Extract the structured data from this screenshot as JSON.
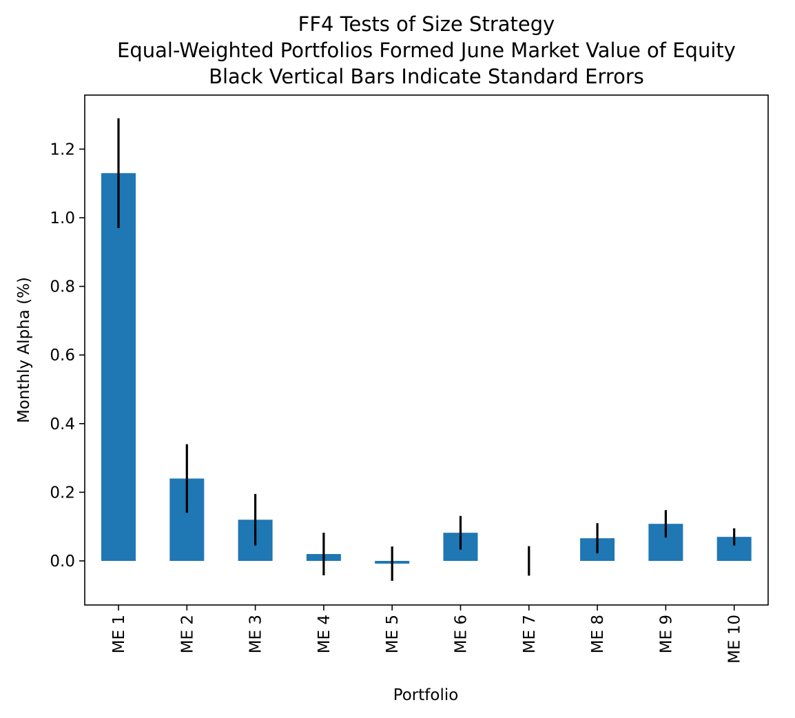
{
  "chart_data": {
    "type": "bar",
    "title_lines": [
      "FF4 Tests of Size Strategy",
      "Equal-Weighted Portfolios Formed June Market Value of Equity",
      "Black Vertical Bars Indicate Standard Errors"
    ],
    "xlabel": "Portfolio",
    "ylabel": "Monthly Alpha (%)",
    "categories": [
      "ME 1",
      "ME 2",
      "ME 3",
      "ME 4",
      "ME 5",
      "ME 6",
      "ME 7",
      "ME 8",
      "ME 9",
      "ME 10"
    ],
    "values": [
      1.13,
      0.24,
      0.12,
      0.02,
      -0.008,
      0.082,
      0.0,
      0.066,
      0.108,
      0.07
    ],
    "errors": [
      0.16,
      0.1,
      0.075,
      0.062,
      0.05,
      0.049,
      0.043,
      0.044,
      0.04,
      0.025
    ],
    "yticks": [
      0.0,
      0.2,
      0.4,
      0.6,
      0.8,
      1.0,
      1.2
    ],
    "ytick_labels": [
      "0.0",
      "0.2",
      "0.4",
      "0.6",
      "0.8",
      "1.0",
      "1.2"
    ],
    "ylim": [
      -0.13,
      1.36
    ],
    "bar_color": "#1f77b4",
    "error_color": "#000000",
    "grid": false,
    "legend": "none"
  }
}
